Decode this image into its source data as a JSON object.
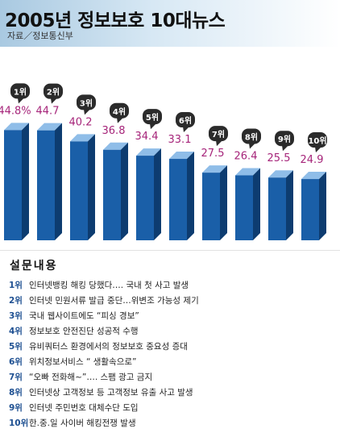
{
  "header": {
    "title": "2005년 정보보호 10대뉴스",
    "source": "자료／정보통신부"
  },
  "chart_data": {
    "type": "bar",
    "categories": [
      "1위",
      "2위",
      "3위",
      "4위",
      "5위",
      "6위",
      "7위",
      "8위",
      "9위",
      "10위"
    ],
    "values": [
      44.8,
      44.7,
      40.2,
      36.8,
      34.4,
      33.1,
      27.5,
      26.4,
      25.5,
      24.9
    ],
    "value_labels": [
      "44.8%",
      "44.7",
      "40.2",
      "36.8",
      "34.4",
      "33.1",
      "27.5",
      "26.4",
      "25.5",
      "24.9"
    ],
    "title": "2005년 정보보호 10대뉴스",
    "xlabel": "",
    "ylabel": "",
    "unit": "%",
    "grid": false,
    "colors": {
      "bar_front": "#1a5fa8",
      "bar_side": "#0d3c70",
      "bar_top": "#8fbde8",
      "value_label": "#a6257a",
      "rank_bubble": "#2b2b2b",
      "rank_text": "#ffffff",
      "header_bg": "#a9c9e1"
    }
  },
  "survey": {
    "title": "설문내용",
    "items": [
      {
        "rank": "1위",
        "text": "인터넷뱅킹 해킹 당했다…. 국내 첫 사고 발생"
      },
      {
        "rank": "2위",
        "text": "인터넷 민원서류 발급 중단…위변조 가능성 제기"
      },
      {
        "rank": "3위",
        "text": "국내 웹사이트에도 “피싱 경보”"
      },
      {
        "rank": "4위",
        "text": "정보보호 안전진단 성공적 수행"
      },
      {
        "rank": "5위",
        "text": "유비쿼터스 환경에서의 정보보호 중요성 증대"
      },
      {
        "rank": "6위",
        "text": "위치정보서비스 “ 생활속으로”"
      },
      {
        "rank": "7위",
        "text": "“오빠 전화해~”…. 스팸 광고 금지"
      },
      {
        "rank": "8위",
        "text": "인터넷상 고객정보 등 고객정보 유출 사고 발생"
      },
      {
        "rank": "9위",
        "text": "인터넷 주민번호 대체수단 도입"
      },
      {
        "rank": "10위",
        "text": "한.중.일 사이버 해킹전쟁 발생"
      }
    ]
  }
}
